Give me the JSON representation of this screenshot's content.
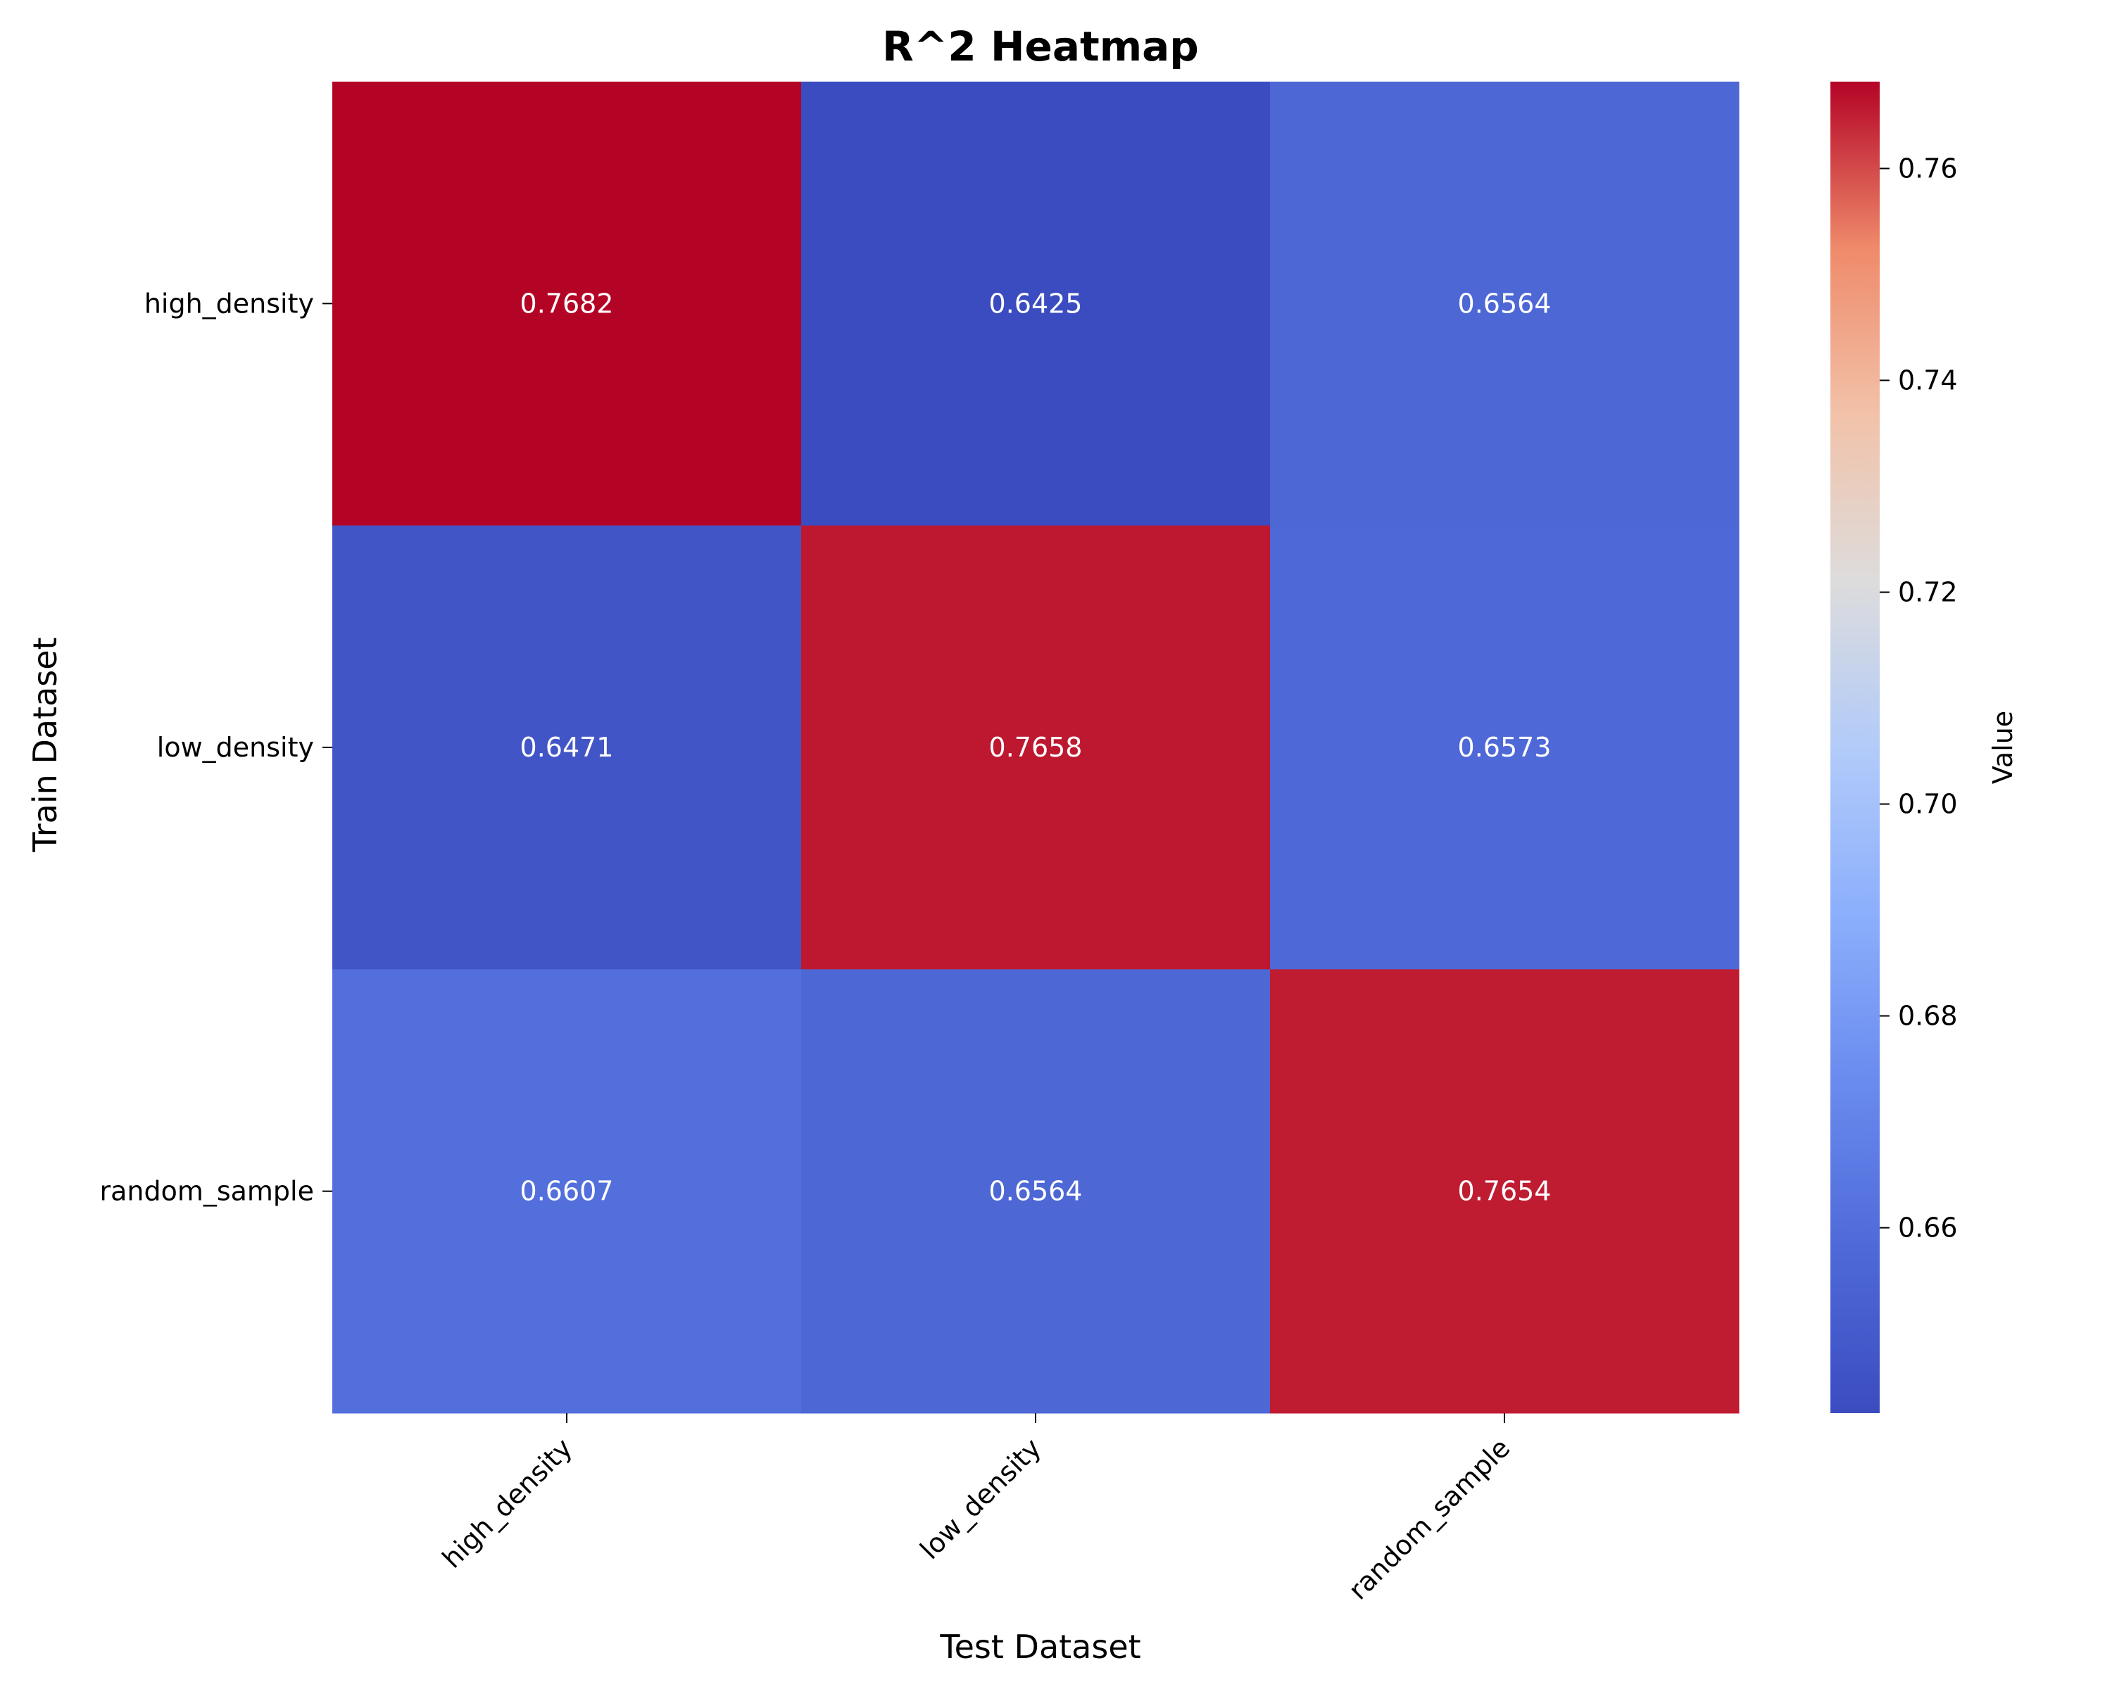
{
  "chart_data": {
    "type": "heatmap",
    "title": "R^2 Heatmap",
    "xlabel": "Test Dataset",
    "ylabel": "Train Dataset",
    "x_categories": [
      "high_density",
      "low_density",
      "random_sample"
    ],
    "y_categories": [
      "high_density",
      "low_density",
      "random_sample"
    ],
    "values": [
      [
        0.7682,
        0.6425,
        0.6564
      ],
      [
        0.6471,
        0.7658,
        0.6573
      ],
      [
        0.6607,
        0.6564,
        0.7654
      ]
    ],
    "value_labels": [
      [
        "0.7682",
        "0.6425",
        "0.6564"
      ],
      [
        "0.6471",
        "0.7658",
        "0.6573"
      ],
      [
        "0.6607",
        "0.6564",
        "0.7654"
      ]
    ],
    "colorbar": {
      "label": "Value",
      "range": [
        0.6425,
        0.7682
      ],
      "ticks": [
        0.66,
        0.68,
        0.7,
        0.72,
        0.74,
        0.76
      ],
      "tick_labels": [
        "0.66",
        "0.68",
        "0.70",
        "0.72",
        "0.74",
        "0.76"
      ],
      "colormap": "coolwarm"
    },
    "grid": false
  }
}
